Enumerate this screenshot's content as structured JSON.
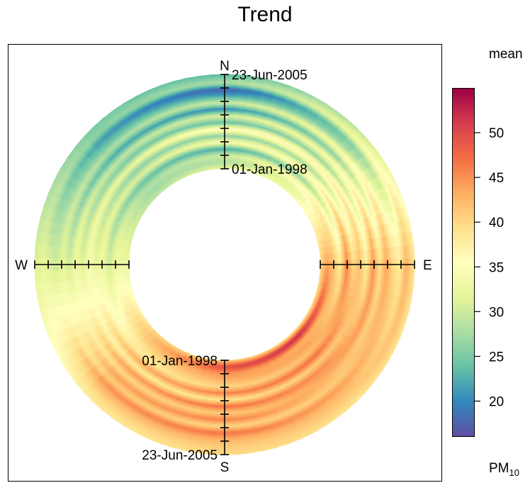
{
  "chart_data": {
    "type": "polar-annulus",
    "title": "Trend",
    "legend_title": "mean",
    "legend_unit": "PM",
    "legend_unit_sub": "10",
    "color_range": [
      16,
      55
    ],
    "colorbar_ticks": [
      20,
      25,
      30,
      35,
      40,
      45,
      50
    ],
    "palette": [
      "#5E4FA2",
      "#3288BD",
      "#66C2A5",
      "#ABDDA4",
      "#E6F598",
      "#FFFFBF",
      "#FEE08B",
      "#FDAE61",
      "#F46D43",
      "#D53E4F",
      "#9E0142"
    ],
    "directions": [
      "N",
      "E",
      "S",
      "W"
    ],
    "time_start": "01-Jan-1998",
    "time_end": "23-Jun-2005",
    "radial_tick_count": 8,
    "annulus_bands": [
      {
        "r": 0.0,
        "profile": [
          [
            0,
            32
          ],
          [
            45,
            34
          ],
          [
            90,
            40
          ],
          [
            135,
            38
          ],
          [
            180,
            41
          ],
          [
            225,
            40
          ],
          [
            270,
            32
          ],
          [
            315,
            29
          ],
          [
            360,
            32
          ]
        ]
      },
      {
        "r": 0.07,
        "profile": [
          [
            0,
            28
          ],
          [
            45,
            32
          ],
          [
            90,
            44
          ],
          [
            135,
            53
          ],
          [
            180,
            50
          ],
          [
            225,
            42
          ],
          [
            270,
            33
          ],
          [
            315,
            27
          ],
          [
            360,
            28
          ]
        ]
      },
      {
        "r": 0.14,
        "profile": [
          [
            0,
            30
          ],
          [
            45,
            36
          ],
          [
            90,
            42
          ],
          [
            135,
            43
          ],
          [
            180,
            45
          ],
          [
            225,
            41
          ],
          [
            270,
            33
          ],
          [
            315,
            28
          ],
          [
            360,
            30
          ]
        ]
      },
      {
        "r": 0.21,
        "profile": [
          [
            0,
            22
          ],
          [
            45,
            27
          ],
          [
            90,
            38
          ],
          [
            135,
            44
          ],
          [
            180,
            43
          ],
          [
            225,
            39
          ],
          [
            270,
            30
          ],
          [
            315,
            24
          ],
          [
            360,
            22
          ]
        ]
      },
      {
        "r": 0.28,
        "profile": [
          [
            0,
            34
          ],
          [
            45,
            36
          ],
          [
            90,
            46
          ],
          [
            135,
            42
          ],
          [
            180,
            40
          ],
          [
            225,
            38
          ],
          [
            270,
            33
          ],
          [
            315,
            31
          ],
          [
            360,
            34
          ]
        ]
      },
      {
        "r": 0.35,
        "profile": [
          [
            0,
            26
          ],
          [
            45,
            28
          ],
          [
            90,
            40
          ],
          [
            135,
            47
          ],
          [
            180,
            46
          ],
          [
            225,
            43
          ],
          [
            270,
            32
          ],
          [
            315,
            26
          ],
          [
            360,
            26
          ]
        ]
      },
      {
        "r": 0.42,
        "profile": [
          [
            0,
            36
          ],
          [
            45,
            37
          ],
          [
            90,
            42
          ],
          [
            135,
            41
          ],
          [
            180,
            39
          ],
          [
            225,
            38
          ],
          [
            270,
            34
          ],
          [
            315,
            32
          ],
          [
            360,
            36
          ]
        ]
      },
      {
        "r": 0.49,
        "profile": [
          [
            0,
            24
          ],
          [
            45,
            27
          ],
          [
            90,
            38
          ],
          [
            135,
            45
          ],
          [
            180,
            47
          ],
          [
            225,
            44
          ],
          [
            270,
            31
          ],
          [
            315,
            25
          ],
          [
            360,
            24
          ]
        ]
      },
      {
        "r": 0.56,
        "profile": [
          [
            0,
            31
          ],
          [
            45,
            34
          ],
          [
            90,
            45
          ],
          [
            135,
            44
          ],
          [
            180,
            41
          ],
          [
            225,
            40
          ],
          [
            270,
            33
          ],
          [
            315,
            29
          ],
          [
            360,
            31
          ]
        ]
      },
      {
        "r": 0.63,
        "profile": [
          [
            0,
            20
          ],
          [
            45,
            26
          ],
          [
            90,
            39
          ],
          [
            135,
            42
          ],
          [
            180,
            46
          ],
          [
            225,
            44
          ],
          [
            270,
            30
          ],
          [
            315,
            22
          ],
          [
            360,
            20
          ]
        ]
      },
      {
        "r": 0.7,
        "profile": [
          [
            0,
            30
          ],
          [
            45,
            34
          ],
          [
            90,
            44
          ],
          [
            135,
            41
          ],
          [
            180,
            40
          ],
          [
            225,
            41
          ],
          [
            270,
            32
          ],
          [
            315,
            28
          ],
          [
            360,
            30
          ]
        ]
      },
      {
        "r": 0.77,
        "profile": [
          [
            0,
            22
          ],
          [
            45,
            27
          ],
          [
            90,
            40
          ],
          [
            135,
            44
          ],
          [
            180,
            47
          ],
          [
            225,
            45
          ],
          [
            270,
            30
          ],
          [
            315,
            24
          ],
          [
            360,
            22
          ]
        ]
      },
      {
        "r": 0.84,
        "profile": [
          [
            0,
            17
          ],
          [
            45,
            25
          ],
          [
            90,
            38
          ],
          [
            135,
            42
          ],
          [
            180,
            43
          ],
          [
            225,
            42
          ],
          [
            270,
            31
          ],
          [
            315,
            21
          ],
          [
            360,
            17
          ]
        ]
      },
      {
        "r": 0.91,
        "profile": [
          [
            0,
            28
          ],
          [
            45,
            33
          ],
          [
            90,
            43
          ],
          [
            135,
            41
          ],
          [
            180,
            41
          ],
          [
            225,
            40
          ],
          [
            270,
            32
          ],
          [
            315,
            26
          ],
          [
            360,
            28
          ]
        ]
      },
      {
        "r": 1.0,
        "profile": [
          [
            0,
            23
          ],
          [
            45,
            29
          ],
          [
            90,
            39
          ],
          [
            135,
            39
          ],
          [
            180,
            40
          ],
          [
            225,
            38
          ],
          [
            270,
            31
          ],
          [
            315,
            25
          ],
          [
            360,
            23
          ]
        ]
      }
    ]
  }
}
